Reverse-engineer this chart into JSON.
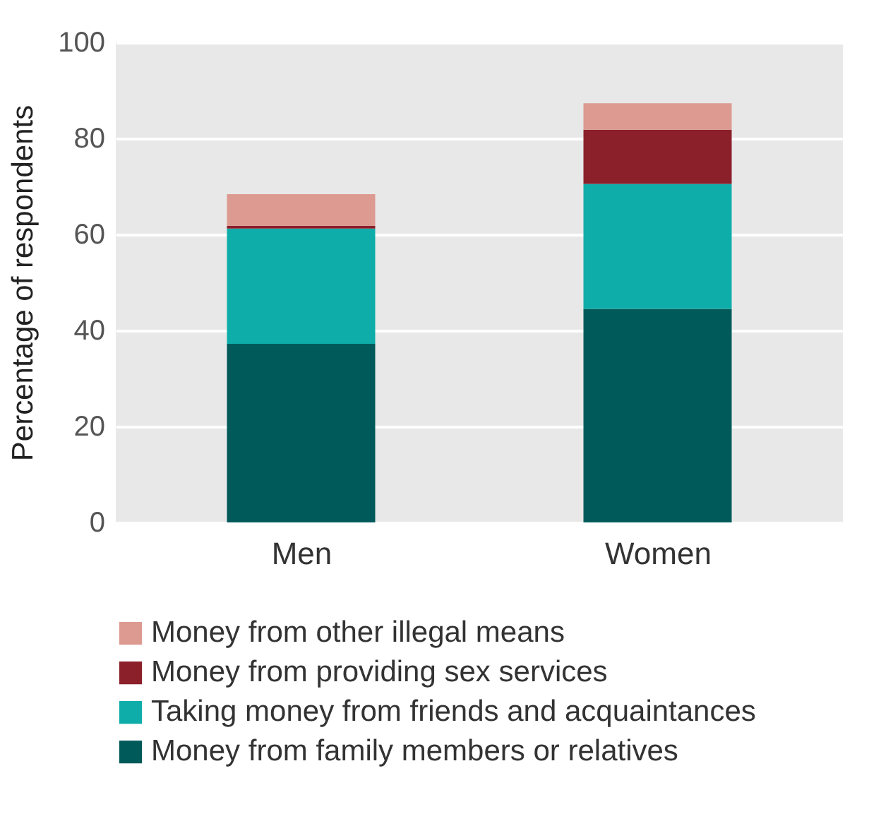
{
  "chart_data": {
    "type": "bar",
    "stacked": true,
    "ylabel": "Percentage of respondents",
    "categories": [
      "Men",
      "Women"
    ],
    "series": [
      {
        "name": "Money from family members or relatives",
        "color": "#005a5a",
        "values": [
          37.2,
          44.5
        ]
      },
      {
        "name": "Taking money from friends and acquaintances",
        "color": "#0fadaa",
        "values": [
          24.0,
          26.0
        ]
      },
      {
        "name": "Money from providing sex services",
        "color": "#8b1f2a",
        "values": [
          0.6,
          11.3
        ]
      },
      {
        "name": "Money from other illegal means",
        "color": "#dc9a90",
        "values": [
          6.6,
          5.5
        ]
      }
    ],
    "ylim": [
      0,
      100
    ],
    "yticks": [
      0,
      20,
      40,
      60,
      80,
      100
    ],
    "grid": "y",
    "legend": "bottom"
  }
}
